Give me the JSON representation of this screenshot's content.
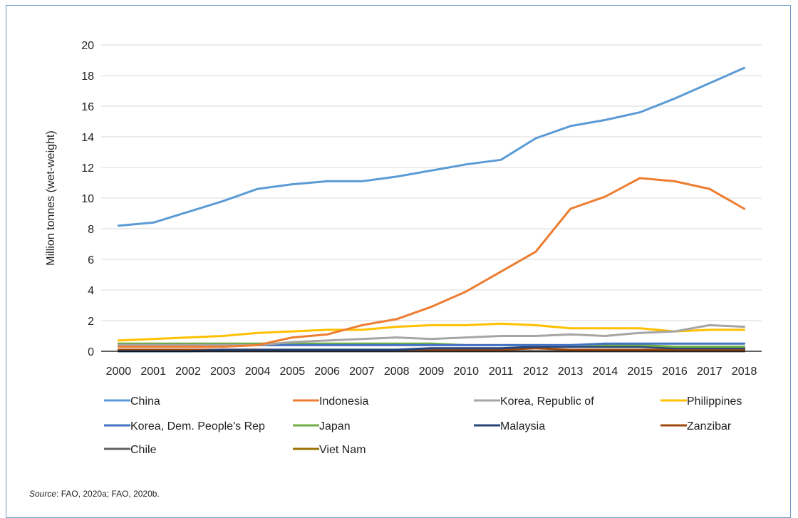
{
  "chart_data": {
    "type": "line",
    "title": "",
    "ylabel": "Million tonnes (wet-weight)",
    "xlabel": "",
    "ylim": [
      0,
      20
    ],
    "yticks": [
      0,
      2,
      4,
      6,
      8,
      10,
      12,
      14,
      16,
      18,
      20
    ],
    "grid": "horizontal",
    "legend_position": "bottom",
    "categories": [
      "2000",
      "2001",
      "2002",
      "2003",
      "2004",
      "2005",
      "2006",
      "2007",
      "2008",
      "2009",
      "2010",
      "2011",
      "2012",
      "2013",
      "2014",
      "2015",
      "2016",
      "2017",
      "2018"
    ],
    "series": [
      {
        "name": "China",
        "color": "#5b9bd5",
        "values": [
          8.2,
          8.4,
          9.1,
          9.8,
          10.6,
          10.9,
          11.1,
          11.1,
          11.4,
          11.8,
          12.2,
          12.5,
          13.9,
          14.7,
          15.1,
          15.6,
          16.5,
          17.5,
          18.5
        ]
      },
      {
        "name": "Indonesia",
        "color": "#ed7d31",
        "values": [
          0.3,
          0.3,
          0.3,
          0.3,
          0.4,
          0.9,
          1.1,
          1.7,
          2.1,
          2.9,
          3.9,
          5.2,
          6.5,
          9.3,
          10.1,
          11.3,
          11.1,
          10.6,
          9.3
        ]
      },
      {
        "name": "Korea, Republic of",
        "color": "#a5a5a5",
        "values": [
          0.4,
          0.4,
          0.4,
          0.4,
          0.4,
          0.6,
          0.7,
          0.8,
          0.9,
          0.8,
          0.9,
          1.0,
          1.0,
          1.1,
          1.0,
          1.2,
          1.3,
          1.7,
          1.6
        ]
      },
      {
        "name": "Philippines",
        "color": "#ffc000",
        "values": [
          0.7,
          0.8,
          0.9,
          1.0,
          1.2,
          1.3,
          1.4,
          1.4,
          1.6,
          1.7,
          1.7,
          1.8,
          1.7,
          1.5,
          1.5,
          1.5,
          1.3,
          1.4,
          1.4
        ]
      },
      {
        "name": "Korea, Dem. People's Rep",
        "color": "#4472c4",
        "values": [
          0.4,
          0.4,
          0.4,
          0.4,
          0.4,
          0.4,
          0.4,
          0.4,
          0.4,
          0.4,
          0.4,
          0.4,
          0.4,
          0.4,
          0.5,
          0.5,
          0.5,
          0.5,
          0.5
        ]
      },
      {
        "name": "Japan",
        "color": "#70ad47",
        "values": [
          0.5,
          0.5,
          0.5,
          0.5,
          0.5,
          0.5,
          0.5,
          0.5,
          0.5,
          0.5,
          0.4,
          0.4,
          0.4,
          0.4,
          0.4,
          0.4,
          0.3,
          0.3,
          0.3
        ]
      },
      {
        "name": "Malaysia",
        "color": "#264478",
        "values": [
          0.0,
          0.0,
          0.0,
          0.1,
          0.1,
          0.1,
          0.1,
          0.1,
          0.1,
          0.2,
          0.2,
          0.2,
          0.3,
          0.3,
          0.3,
          0.3,
          0.2,
          0.2,
          0.2
        ]
      },
      {
        "name": "Zanzibar",
        "color": "#9e480e",
        "values": [
          0.1,
          0.1,
          0.1,
          0.1,
          0.1,
          0.1,
          0.1,
          0.1,
          0.1,
          0.1,
          0.1,
          0.1,
          0.2,
          0.1,
          0.1,
          0.1,
          0.1,
          0.1,
          0.1
        ]
      },
      {
        "name": "Chile",
        "color": "#636363",
        "values": [
          0.0,
          0.0,
          0.0,
          0.0,
          0.0,
          0.0,
          0.0,
          0.0,
          0.0,
          0.0,
          0.0,
          0.0,
          0.0,
          0.0,
          0.0,
          0.0,
          0.0,
          0.0,
          0.0
        ]
      },
      {
        "name": "Viet Nam",
        "color": "#997300",
        "values": [
          0.0,
          0.0,
          0.0,
          0.0,
          0.0,
          0.0,
          0.0,
          0.0,
          0.0,
          0.0,
          0.0,
          0.0,
          0.0,
          0.0,
          0.0,
          0.0,
          0.0,
          0.0,
          0.0
        ]
      }
    ]
  },
  "source": {
    "label": "Source",
    "text": ": FAO, 2020a; FAO, 2020b."
  }
}
